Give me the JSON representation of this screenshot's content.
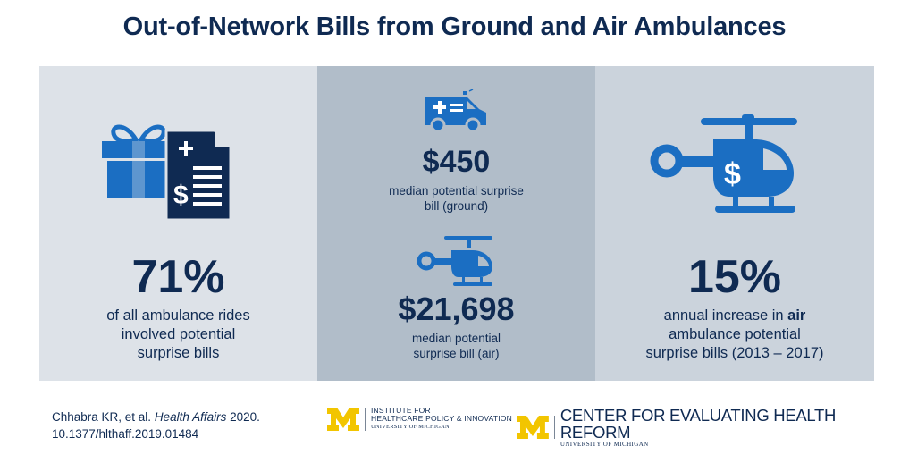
{
  "title": "Out-of-Network Bills from Ground and Air Ambulances",
  "panels": {
    "left": {
      "value": "71%",
      "lines": [
        "of all ambulance rides",
        "involved potential",
        "surprise bills"
      ]
    },
    "middle": {
      "ground_value": "$450",
      "ground_lines": [
        "median potential surprise",
        "bill (ground)"
      ],
      "air_value": "$21,698",
      "air_lines": [
        "median potential",
        "surprise bill (air)"
      ]
    },
    "right": {
      "value": "15%",
      "line1_pre": "annual increase in ",
      "line1_bold": "air",
      "line2": "ambulance potential",
      "line3": "surprise bills (2013 – 2017)"
    }
  },
  "footer": {
    "citation_author": "Chhabra KR, et al. ",
    "citation_journal": "Health Affairs",
    "citation_year": " 2020.",
    "citation_doi": "10.1377/hlthaff.2019.01484",
    "ihpi_line1": "INSTITUTE FOR",
    "ihpi_line2": "HEALTHCARE POLICY & INNOVATION",
    "ihpi_line3": "UNIVERSITY OF MICHIGAN",
    "cehr_main": "CENTER FOR EVALUATING HEALTH REFORM",
    "cehr_sub": "UNIVERSITY OF MICHIGAN"
  },
  "colors": {
    "navy": "#0f2a52",
    "blue": "#1b6ec2",
    "maize": "#f2c500",
    "panel_left": "#dde2e8",
    "panel_middle": "#b1bdc9",
    "panel_right": "#cbd3dc"
  },
  "icons": [
    "gift-icon",
    "bill-document-icon",
    "ambulance-icon",
    "helicopter-icon",
    "helicopter-dollar-icon",
    "michigan-m-logo"
  ]
}
